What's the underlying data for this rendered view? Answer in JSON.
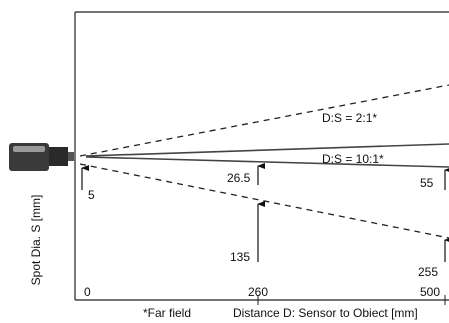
{
  "diagram": {
    "ratio_labels": {
      "wide": "D:S = 2:1*",
      "narrow": "D:S = 10:1*"
    },
    "spot_labels": {
      "at_0_narrow": "5",
      "at_260_narrow": "26.5",
      "at_500_narrow": "55",
      "at_260_wide": "135",
      "at_500_wide": "255"
    },
    "distance_labels": {
      "d0": "0",
      "d260": "260",
      "d500": "500"
    },
    "y_axis_label": "Spot Dia. S [mm]",
    "x_axis_label": "Distance D: Sensor to Obiect [mm]",
    "footnote": "*Far field",
    "colors": {
      "line": "#222222",
      "sensor_body": "#3a3a3a",
      "sensor_highlight": "#9a9a9a"
    },
    "icons": {
      "sensor": "ir-sensor-icon"
    }
  }
}
